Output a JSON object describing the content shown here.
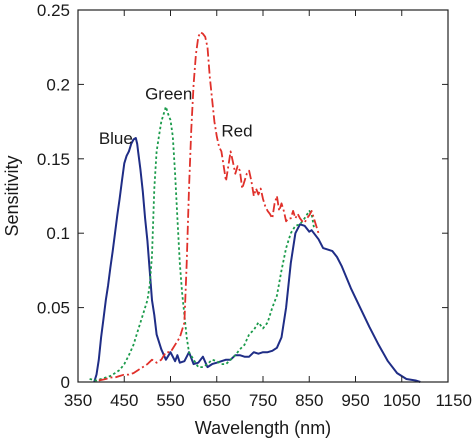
{
  "chart_data": {
    "type": "line",
    "xlabel": "Wavelength (nm)",
    "ylabel": "Sensitivity",
    "xlim": [
      350,
      1150
    ],
    "ylim": [
      0,
      0.25
    ],
    "xticks": [
      350,
      450,
      550,
      650,
      750,
      850,
      950,
      1050,
      1150
    ],
    "xtick_labels": [
      "350",
      "450",
      "550",
      "650",
      "750",
      "850",
      "950",
      "1050",
      "1150"
    ],
    "yticks": [
      0,
      0.05,
      0.1,
      0.15,
      0.2,
      0.25
    ],
    "ytick_labels": [
      "0",
      "0.05",
      "0.1",
      "0.15",
      "0.2",
      "0.25"
    ],
    "grid": false,
    "legend": "none",
    "series": [
      {
        "name": "Blue",
        "color": "#1f2d86",
        "style": "solid",
        "label_at": [
          395,
          0.16
        ],
        "x": [
          385,
          390,
          395,
          400,
          405,
          410,
          415,
          420,
          425,
          430,
          435,
          440,
          445,
          450,
          455,
          460,
          465,
          470,
          475,
          478,
          480,
          485,
          490,
          495,
          500,
          505,
          510,
          515,
          520,
          530,
          540,
          550,
          560,
          565,
          570,
          580,
          590,
          600,
          610,
          620,
          630,
          640,
          650,
          660,
          670,
          680,
          690,
          700,
          710,
          720,
          730,
          740,
          750,
          760,
          770,
          780,
          790,
          800,
          810,
          820,
          830,
          840,
          850,
          855,
          860,
          870,
          880,
          890,
          900,
          910,
          920,
          940,
          960,
          980,
          1000,
          1020,
          1040,
          1060,
          1080,
          1090
        ],
        "y": [
          0,
          0.005,
          0.015,
          0.03,
          0.042,
          0.055,
          0.065,
          0.077,
          0.088,
          0.1,
          0.112,
          0.123,
          0.135,
          0.147,
          0.152,
          0.155,
          0.16,
          0.163,
          0.164,
          0.16,
          0.155,
          0.143,
          0.128,
          0.11,
          0.095,
          0.075,
          0.055,
          0.045,
          0.032,
          0.022,
          0.015,
          0.02,
          0.014,
          0.018,
          0.013,
          0.014,
          0.02,
          0.012,
          0.013,
          0.017,
          0.01,
          0.012,
          0.013,
          0.014,
          0.015,
          0.015,
          0.018,
          0.018,
          0.017,
          0.017,
          0.02,
          0.019,
          0.02,
          0.02,
          0.021,
          0.023,
          0.03,
          0.05,
          0.08,
          0.1,
          0.106,
          0.105,
          0.101,
          0.102,
          0.1,
          0.096,
          0.09,
          0.089,
          0.088,
          0.084,
          0.078,
          0.063,
          0.05,
          0.037,
          0.025,
          0.014,
          0.006,
          0.002,
          0.001,
          0.0
        ]
      },
      {
        "name": "Green",
        "color": "#1a9a4a",
        "style": "dotted",
        "label_at": [
          495,
          0.19
        ],
        "x": [
          375,
          390,
          400,
          410,
          420,
          430,
          440,
          450,
          460,
          470,
          480,
          490,
          500,
          505,
          510,
          515,
          520,
          525,
          530,
          535,
          540,
          545,
          550,
          555,
          560,
          565,
          570,
          575,
          580,
          585,
          590,
          600,
          610,
          620,
          630,
          640,
          650,
          660,
          670,
          680,
          690,
          700,
          710,
          720,
          730,
          740,
          750,
          760,
          770,
          780,
          790,
          800,
          810,
          820,
          830,
          840,
          850,
          855,
          860
        ],
        "y": [
          0.002,
          0.001,
          0.002,
          0.003,
          0.004,
          0.006,
          0.008,
          0.012,
          0.018,
          0.025,
          0.035,
          0.045,
          0.055,
          0.065,
          0.085,
          0.13,
          0.155,
          0.165,
          0.175,
          0.18,
          0.185,
          0.18,
          0.176,
          0.165,
          0.14,
          0.11,
          0.08,
          0.06,
          0.045,
          0.03,
          0.02,
          0.015,
          0.01,
          0.01,
          0.012,
          0.015,
          0.014,
          0.012,
          0.012,
          0.015,
          0.018,
          0.022,
          0.025,
          0.032,
          0.035,
          0.04,
          0.036,
          0.04,
          0.05,
          0.058,
          0.075,
          0.09,
          0.1,
          0.105,
          0.106,
          0.11,
          0.115,
          0.113,
          0.104
        ]
      },
      {
        "name": "Red",
        "color": "#e0302a",
        "style": "dashdot",
        "label_at": [
          660,
          0.165
        ],
        "x": [
          395,
          410,
          420,
          430,
          440,
          450,
          460,
          470,
          480,
          490,
          500,
          510,
          520,
          530,
          540,
          550,
          560,
          570,
          580,
          585,
          590,
          595,
          600,
          605,
          610,
          615,
          620,
          625,
          630,
          635,
          640,
          645,
          650,
          655,
          660,
          665,
          670,
          675,
          680,
          685,
          690,
          695,
          700,
          705,
          710,
          715,
          720,
          725,
          730,
          735,
          740,
          745,
          750,
          755,
          760,
          765,
          770,
          775,
          780,
          785,
          790,
          795,
          800,
          805,
          810,
          815,
          820,
          825,
          830,
          835,
          840,
          845,
          850,
          855,
          860,
          865,
          870
        ],
        "y": [
          0.001,
          0.002,
          0.003,
          0.003,
          0.004,
          0.005,
          0.005,
          0.006,
          0.008,
          0.01,
          0.012,
          0.015,
          0.013,
          0.015,
          0.02,
          0.02,
          0.025,
          0.03,
          0.04,
          0.08,
          0.13,
          0.17,
          0.2,
          0.22,
          0.232,
          0.235,
          0.234,
          0.232,
          0.225,
          0.205,
          0.19,
          0.175,
          0.165,
          0.158,
          0.155,
          0.145,
          0.135,
          0.145,
          0.155,
          0.148,
          0.14,
          0.145,
          0.142,
          0.13,
          0.135,
          0.14,
          0.142,
          0.135,
          0.125,
          0.13,
          0.126,
          0.13,
          0.123,
          0.118,
          0.115,
          0.113,
          0.11,
          0.12,
          0.125,
          0.115,
          0.12,
          0.115,
          0.108,
          0.11,
          0.11,
          0.115,
          0.11,
          0.113,
          0.11,
          0.108,
          0.107,
          0.11,
          0.112,
          0.115,
          0.11,
          0.105,
          0.1
        ]
      }
    ]
  }
}
